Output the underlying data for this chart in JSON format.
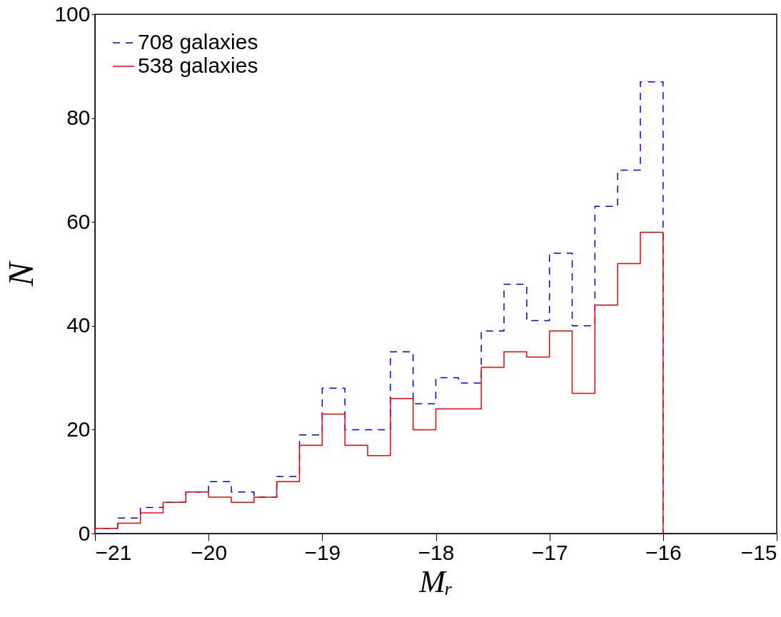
{
  "chart_data": {
    "type": "histogram",
    "xlabel": "Mᵣ",
    "ylabel": "N",
    "bins": [
      -21,
      -20.8,
      -20.6,
      -20.4,
      -20.2,
      -20,
      -19.8,
      -19.6,
      -19.4,
      -19.2,
      -19,
      -18.8,
      -18.6,
      -18.4,
      -18.2,
      -18,
      -17.8,
      -17.6,
      -17.4,
      -17.2,
      -17,
      -16.8,
      -16.6,
      -16.4,
      -16.2,
      -16
    ],
    "series": [
      {
        "name": "708 galaxies",
        "color": "#0000ff",
        "line_style": "dashed",
        "values": [
          1,
          3,
          5,
          6,
          8,
          10,
          8,
          7,
          11,
          19,
          28,
          20,
          20,
          35,
          25,
          30,
          29,
          39,
          48,
          41,
          54,
          40,
          63,
          70,
          87
        ]
      },
      {
        "name": "538 galaxies",
        "color": "#ff0000",
        "line_style": "solid",
        "values": [
          1,
          2,
          4,
          6,
          8,
          7,
          6,
          7,
          10,
          17,
          23,
          17,
          15,
          26,
          20,
          24,
          24,
          32,
          35,
          34,
          39,
          27,
          44,
          52,
          58
        ]
      }
    ],
    "xlim": [
      -21,
      -15
    ],
    "xticks": [
      -21,
      -20,
      -19,
      -18,
      -17,
      -16,
      -15
    ],
    "ylim": [
      0,
      100
    ],
    "yticks": [
      0,
      20,
      40,
      60,
      80,
      100
    ],
    "grid": false,
    "legend": "top left"
  }
}
